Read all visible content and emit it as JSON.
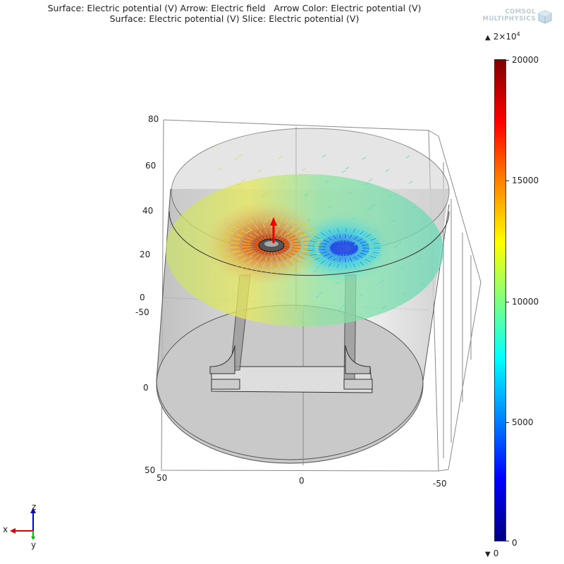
{
  "title": {
    "line1": "Surface: Electric potential (V) Arrow: Electric field   Arrow Color: Electric potential (V)",
    "line2": "Surface: Electric potential (V) Slice: Electric potential (V)"
  },
  "logo": {
    "line1": "COMSOL",
    "line2": "MULTIPHYSICS"
  },
  "colorbar": {
    "max_label": "2×10",
    "max_exponent": "4",
    "min_label": "0",
    "ticks": [
      "20000",
      "15000",
      "10000",
      "5000",
      "0"
    ],
    "range": [
      0,
      20000
    ]
  },
  "axes": {
    "z_ticks": [
      "80",
      "60",
      "40",
      "20",
      "0"
    ],
    "y_ticks": [
      "-50",
      "0",
      "50"
    ],
    "x_ticks": [
      "50",
      "0",
      "-50"
    ]
  },
  "triad": {
    "x": "x",
    "y": "y",
    "z": "z"
  },
  "colors": {
    "x_axis": "#dd0000",
    "y_axis": "#00bb00",
    "z_axis": "#0000dd"
  }
}
